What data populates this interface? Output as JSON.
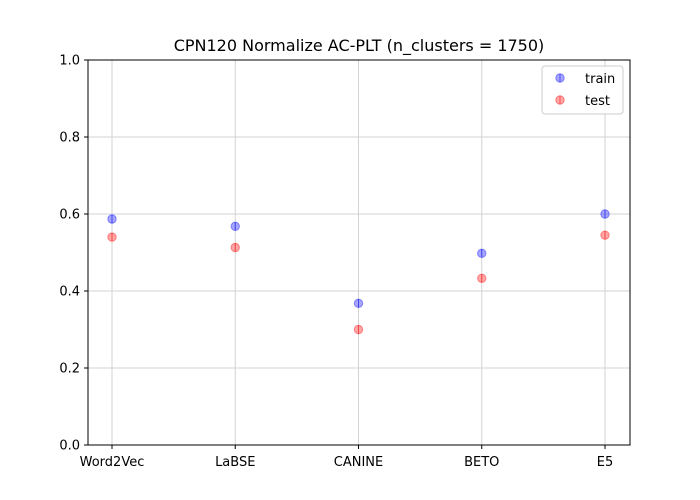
{
  "chart_data": {
    "type": "scatter",
    "title": "CPN120 Normalize AC-PLT (n_clusters = 1750)",
    "xlabel": "",
    "ylabel": "",
    "categories": [
      "Word2Vec",
      "LaBSE",
      "CANINE",
      "BETO",
      "E5"
    ],
    "ylim": [
      0,
      1.0
    ],
    "yticks": [
      "0.0",
      "0.2",
      "0.4",
      "0.6",
      "0.8",
      "1.0"
    ],
    "grid": true,
    "legend_position": "top-right",
    "series": [
      {
        "name": "train",
        "color": "#0000ff",
        "values": [
          0.587,
          0.568,
          0.368,
          0.498,
          0.6
        ]
      },
      {
        "name": "test",
        "color": "#ff0000",
        "values": [
          0.54,
          0.513,
          0.3,
          0.433,
          0.545
        ]
      }
    ]
  }
}
